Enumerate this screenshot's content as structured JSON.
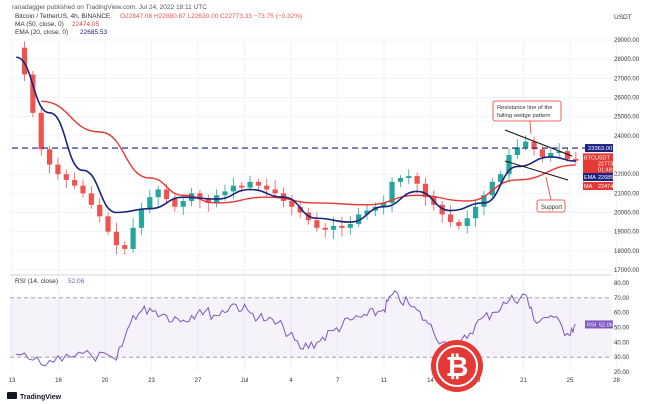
{
  "header": {
    "publisher": "ranadagger published on TradingView.com, Jul 24, 2022 18:11 UTC",
    "symbol_line": "Bitcoin / TetherUS, 4h, BINANCE",
    "ohlc": "O22847.08 H22880.87 L22630.00 C22773.33 −73.75 (−0.32%)",
    "ma_label": "MA (50, close, 0)",
    "ma_value": "22474.05",
    "ema_label": "EMA (20, close, 0)",
    "ema_value": "22685.53"
  },
  "currency_label": "USDT",
  "footer": {
    "brand": "TradingView"
  },
  "colors": {
    "up": "#26a69a",
    "down": "#ef5350",
    "ma": "#e53935",
    "ema": "#1a237e",
    "resistance": "#1a237e",
    "rsi": "#7e57c2",
    "badge_red": "#e53935"
  },
  "badges": [
    {
      "id": "btcusdt",
      "lines": [
        "BTCUSDT",
        "22773.33",
        "01:48:08"
      ],
      "color": "#e53935",
      "price": 22773
    },
    {
      "id": "ema",
      "label": "EMA",
      "value": "22685.53",
      "color": "#1a237e",
      "price": 22686
    },
    {
      "id": "ma",
      "label": "MA",
      "value": "22474.05",
      "color": "#e53935",
      "price": 22474
    },
    {
      "id": "level",
      "value": "23363.00",
      "color": "#1a237e",
      "price": 23363
    }
  ],
  "annotations": {
    "resistance_text": [
      "Resistance line of the",
      "falling wedge pattern"
    ],
    "support_text": "Support"
  },
  "rsi": {
    "label": "RSI (14, close)",
    "value": "52.06",
    "badge": "RSI",
    "ticks": [
      "80.00",
      "70.00",
      "60.00",
      "50.00",
      "40.00",
      "30.00",
      "20.00"
    ]
  },
  "chart_data": {
    "type": "candlestick",
    "title": "Bitcoin / TetherUS, 4h, BINANCE",
    "y_axis": {
      "range": [
        17000,
        30000
      ],
      "ticks": [
        "29000.00",
        "28000.00",
        "27000.00",
        "26000.00",
        "25000.00",
        "24000.00",
        "22000.00",
        "21000.00",
        "20000.00",
        "19000.00",
        "18000.00",
        "17000.00"
      ]
    },
    "x_axis": {
      "ticks": [
        "13",
        "16",
        "20",
        "23",
        "27",
        "Jul",
        "4",
        "7",
        "11",
        "14",
        "18",
        "21",
        "25",
        "28"
      ]
    },
    "price_path": [
      [
        0,
        28600
      ],
      [
        1,
        27200
      ],
      [
        2,
        25200
      ],
      [
        3,
        23300
      ],
      [
        4,
        22500
      ],
      [
        5,
        22000
      ],
      [
        6,
        21700
      ],
      [
        7,
        21400
      ],
      [
        8,
        21000
      ],
      [
        9,
        20400
      ],
      [
        10,
        19800
      ],
      [
        11,
        19000
      ],
      [
        12,
        18300
      ],
      [
        13,
        18100
      ],
      [
        14,
        19200
      ],
      [
        15,
        20200
      ],
      [
        16,
        20800
      ],
      [
        17,
        21200
      ],
      [
        18,
        20700
      ],
      [
        19,
        20300
      ],
      [
        20,
        20600
      ],
      [
        21,
        21000
      ],
      [
        22,
        20700
      ],
      [
        23,
        20500
      ],
      [
        24,
        20900
      ],
      [
        25,
        21100
      ],
      [
        26,
        21400
      ],
      [
        27,
        21300
      ],
      [
        28,
        21600
      ],
      [
        29,
        21400
      ],
      [
        30,
        21200
      ],
      [
        31,
        21000
      ],
      [
        32,
        20600
      ],
      [
        33,
        20300
      ],
      [
        34,
        20000
      ],
      [
        35,
        19600
      ],
      [
        36,
        19200
      ],
      [
        37,
        19100
      ],
      [
        38,
        19300
      ],
      [
        39,
        19200
      ],
      [
        40,
        19400
      ],
      [
        41,
        19900
      ],
      [
        42,
        20100
      ],
      [
        43,
        20300
      ],
      [
        44,
        20500
      ],
      [
        45,
        21600
      ],
      [
        46,
        21800
      ],
      [
        47,
        21900
      ],
      [
        48,
        21500
      ],
      [
        49,
        20800
      ],
      [
        50,
        20400
      ],
      [
        51,
        19900
      ],
      [
        52,
        19500
      ],
      [
        53,
        19300
      ],
      [
        54,
        19700
      ],
      [
        55,
        20300
      ],
      [
        56,
        20900
      ],
      [
        57,
        21600
      ],
      [
        58,
        22000
      ],
      [
        59,
        23000
      ],
      [
        60,
        23400
      ],
      [
        61,
        23700
      ],
      [
        62,
        23300
      ],
      [
        63,
        22900
      ],
      [
        64,
        23100
      ],
      [
        65,
        23200
      ],
      [
        66,
        22800
      ],
      [
        67,
        22700
      ]
    ],
    "series": [
      {
        "name": "MA (50, close, 0)",
        "values": [
          [
            3,
            25800
          ],
          [
            10,
            24200
          ],
          [
            16,
            21800
          ],
          [
            20,
            20900
          ],
          [
            24,
            20500
          ],
          [
            30,
            20800
          ],
          [
            36,
            20500
          ],
          [
            42,
            20400
          ],
          [
            48,
            20900
          ],
          [
            54,
            20600
          ],
          [
            60,
            21700
          ],
          [
            67,
            22474
          ]
        ]
      },
      {
        "name": "EMA (20, close, 0)",
        "values": [
          [
            0,
            28100
          ],
          [
            4,
            25200
          ],
          [
            8,
            22200
          ],
          [
            12,
            20000
          ],
          [
            16,
            20200
          ],
          [
            20,
            20800
          ],
          [
            24,
            20700
          ],
          [
            28,
            21200
          ],
          [
            32,
            20800
          ],
          [
            36,
            19700
          ],
          [
            40,
            19500
          ],
          [
            44,
            20300
          ],
          [
            48,
            21100
          ],
          [
            52,
            20100
          ],
          [
            56,
            20500
          ],
          [
            60,
            22400
          ],
          [
            64,
            22900
          ],
          [
            67,
            22686
          ]
        ]
      }
    ],
    "horizontal_line": {
      "value": 23363,
      "style": "dashed"
    },
    "rsi_values": [
      [
        0,
        32
      ],
      [
        3,
        25
      ],
      [
        6,
        32
      ],
      [
        9,
        31
      ],
      [
        12,
        28
      ],
      [
        14,
        58
      ],
      [
        16,
        63
      ],
      [
        18,
        58
      ],
      [
        20,
        55
      ],
      [
        22,
        62
      ],
      [
        24,
        58
      ],
      [
        26,
        66
      ],
      [
        28,
        60
      ],
      [
        30,
        55
      ],
      [
        32,
        50
      ],
      [
        34,
        36
      ],
      [
        36,
        40
      ],
      [
        38,
        48
      ],
      [
        40,
        55
      ],
      [
        42,
        58
      ],
      [
        44,
        62
      ],
      [
        45,
        72
      ],
      [
        47,
        66
      ],
      [
        49,
        55
      ],
      [
        51,
        40
      ],
      [
        53,
        37
      ],
      [
        55,
        52
      ],
      [
        57,
        60
      ],
      [
        59,
        68
      ],
      [
        61,
        72
      ],
      [
        62,
        55
      ],
      [
        64,
        58
      ],
      [
        66,
        46
      ],
      [
        67,
        52
      ]
    ],
    "rsi_range": [
      20,
      80
    ]
  }
}
